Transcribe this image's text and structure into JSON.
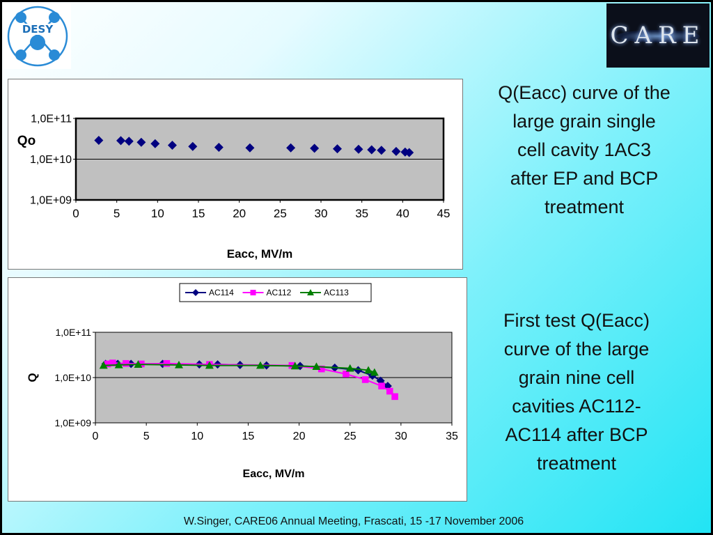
{
  "captions": {
    "top": [
      "Q(Eacc) curve of the",
      "large grain single",
      "cell cavity 1AC3",
      "after EP and BCP",
      "treatment"
    ],
    "bottom": [
      "First test Q(Eacc)",
      "curve of the large",
      "grain nine cell",
      "cavities AC112-",
      "AC114 after BCP",
      "treatment"
    ]
  },
  "footer": "W.Singer, CARE06 Annual Meeting, Frascati, 15 -17 November 2006",
  "logos": {
    "left": "DESY",
    "right": "CARE"
  },
  "chart_data": [
    {
      "type": "scatter",
      "title": "",
      "xlabel": "Eacc, MV/m",
      "ylabel": "Qo",
      "xlim": [
        0,
        45
      ],
      "ylim": [
        1000000000.0,
        100000000000.0
      ],
      "yscale": "log",
      "xticks": [
        "0",
        "5",
        "10",
        "15",
        "20",
        "25",
        "30",
        "35",
        "40",
        "45"
      ],
      "yticks": [
        "1,0E+11",
        "1,0E+10",
        "1,0E+09"
      ],
      "grid": "horizontal",
      "plot_background": "#c0c0c0",
      "series": [
        {
          "color": "#000080",
          "marker": "diamond",
          "x": [
            2.8,
            5.5,
            6.5,
            8.0,
            9.7,
            11.8,
            14.3,
            17.5,
            21.3,
            26.3,
            29.2,
            32.0,
            34.6,
            36.2,
            37.4,
            39.2,
            40.3,
            40.8
          ],
          "y": [
            29000000000.0,
            28500000000.0,
            27500000000.0,
            26000000000.0,
            24000000000.0,
            22000000000.0,
            20500000000.0,
            19500000000.0,
            19000000000.0,
            19000000000.0,
            18500000000.0,
            18000000000.0,
            17500000000.0,
            17000000000.0,
            16500000000.0,
            15500000000.0,
            15000000000.0,
            14500000000.0
          ]
        }
      ]
    },
    {
      "type": "line",
      "title": "",
      "xlabel": "Eacc, MV/m",
      "ylabel": "Q",
      "xlim": [
        0,
        35
      ],
      "ylim": [
        1000000000.0,
        100000000000.0
      ],
      "yscale": "log",
      "xticks": [
        "0",
        "5",
        "10",
        "15",
        "20",
        "25",
        "30",
        "35"
      ],
      "yticks": [
        "1,0E+11",
        "1,0E+10",
        "1,0E+09"
      ],
      "grid": "horizontal",
      "legend": "top-center",
      "plot_background": "#c0c0c0",
      "series": [
        {
          "name": "AC114",
          "color": "#000080",
          "marker": "diamond",
          "x": [
            1.0,
            2.2,
            3.5,
            6.6,
            10.2,
            12.0,
            14.2,
            16.8,
            20.1,
            23.5,
            25.8,
            27.2,
            28.0,
            28.7
          ],
          "y": [
            20000000000.0,
            20000000000.0,
            20000000000.0,
            20000000000.0,
            19500000000.0,
            19500000000.0,
            19000000000.0,
            18500000000.0,
            18000000000.0,
            16500000000.0,
            14500000000.0,
            11000000000.0,
            8500000000.0,
            6500000000.0
          ]
        },
        {
          "name": "AC112",
          "color": "#ff00ff",
          "marker": "square",
          "x": [
            1.2,
            1.7,
            3.0,
            4.5,
            7.0,
            11.2,
            19.3,
            22.2,
            24.6,
            26.5,
            28.1,
            28.9,
            29.4
          ],
          "y": [
            20000000000.0,
            21000000000.0,
            20500000000.0,
            20000000000.0,
            20500000000.0,
            19500000000.0,
            18500000000.0,
            15500000000.0,
            12000000000.0,
            9000000000.0,
            6500000000.0,
            5000000000.0,
            3800000000.0
          ]
        },
        {
          "name": "AC113",
          "color": "#007f00",
          "marker": "triangle",
          "x": [
            0.8,
            2.3,
            4.2,
            8.2,
            11.2,
            16.2,
            19.6,
            21.7,
            25.0,
            26.8,
            27.4
          ],
          "y": [
            18500000000.0,
            19000000000.0,
            19500000000.0,
            19000000000.0,
            18500000000.0,
            18500000000.0,
            18000000000.0,
            17500000000.0,
            16000000000.0,
            14500000000.0,
            13000000000.0
          ]
        }
      ]
    }
  ]
}
